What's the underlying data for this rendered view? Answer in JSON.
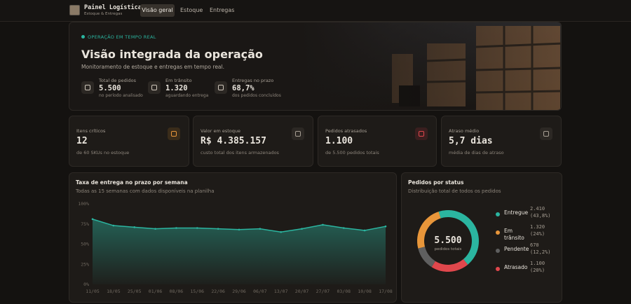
{
  "header": {
    "title": "Painel Logística",
    "subtitle": "Estoque & Entregas",
    "nav": [
      "Visão geral",
      "Estoque",
      "Entregas"
    ]
  },
  "hero": {
    "badge": "OPERAÇÃO EM TEMPO REAL",
    "title": "Visão integrada da operação",
    "subtitle": "Monitoramento de estoque e entregas em tempo real.",
    "stats": [
      {
        "label": "Total de pedidos",
        "value": "5.500",
        "note": "no período analisado"
      },
      {
        "label": "Em trânsito",
        "value": "1.320",
        "note": "aguardando entrega"
      },
      {
        "label": "Entregas no prazo",
        "value": "68,7%",
        "note": "dos pedidos concluídos"
      }
    ]
  },
  "kpis": [
    {
      "label": "Itens críticos",
      "value": "12",
      "note": "de 60 SKUs no estoque"
    },
    {
      "label": "Valor em estoque",
      "value": "R$ 4.385.157",
      "note": "custo total dos itens armazenados"
    },
    {
      "label": "Pedidos atrasados",
      "value": "1.100",
      "note": "de 5.500 pedidos totais"
    },
    {
      "label": "Atraso médio",
      "value": "5,7 dias",
      "note": "média de dias de atraso"
    }
  ],
  "line_chart": {
    "type": "area",
    "title": "Taxa de entrega no prazo por semana",
    "subtitle": "Todas as 15 semanas com dados disponíveis na planilha",
    "categories": [
      "11/05",
      "18/05",
      "25/05",
      "01/06",
      "08/06",
      "15/06",
      "22/06",
      "29/06",
      "06/07",
      "13/07",
      "20/07",
      "27/07",
      "03/08",
      "10/08",
      "17/08"
    ],
    "values": [
      81,
      73,
      71,
      69,
      70,
      70,
      69,
      68,
      69,
      65,
      69,
      74,
      70,
      67,
      72
    ],
    "color": "#2bb5a0",
    "ylim": [
      0,
      100
    ],
    "yticks": [
      {
        "value": 0,
        "label": "0%"
      },
      {
        "value": 25,
        "label": "25%"
      },
      {
        "value": 50,
        "label": "50%"
      },
      {
        "value": 75,
        "label": "75%"
      },
      {
        "value": 100,
        "label": "100%"
      }
    ]
  },
  "status_chart": {
    "type": "donut",
    "title": "Pedidos por status",
    "subtitle": "Distribuição total de todos os pedidos",
    "total": "5.500",
    "total_label": "pedidos totais",
    "categories": [
      "Entregue",
      "Em trânsito",
      "Pendente",
      "Atrasado"
    ],
    "values": [
      2410,
      1320,
      670,
      1100
    ],
    "value_labels": [
      "2.410",
      "1.320",
      "670",
      "1.100"
    ],
    "share_labels": [
      "(43,8%)",
      "(24%)",
      "(12,2%)",
      "(20%)"
    ],
    "colors": [
      "#2bb5a0",
      "#e8963a",
      "#5f5f5f",
      "#e0474c"
    ]
  }
}
